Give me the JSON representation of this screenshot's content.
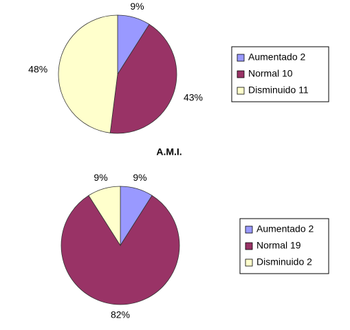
{
  "chart_data": [
    {
      "type": "pie",
      "labels": [
        "Aumentado 2",
        "Normal 10",
        "Disminuido 11"
      ],
      "values": [
        9,
        43,
        48
      ],
      "value_labels": [
        "9%",
        "43%",
        "48%"
      ],
      "colors": [
        "#9999ff",
        "#993366",
        "#ffffcc"
      ],
      "legend": "right"
    },
    {
      "type": "pie",
      "title": "A.M.I.",
      "labels": [
        "Aumentado 2",
        "Normal 19",
        "Disminuido 2"
      ],
      "values": [
        9,
        82,
        9
      ],
      "value_labels": [
        "9%",
        "82%",
        "9%"
      ],
      "colors": [
        "#9999ff",
        "#993366",
        "#ffffcc"
      ],
      "legend": "right"
    }
  ]
}
